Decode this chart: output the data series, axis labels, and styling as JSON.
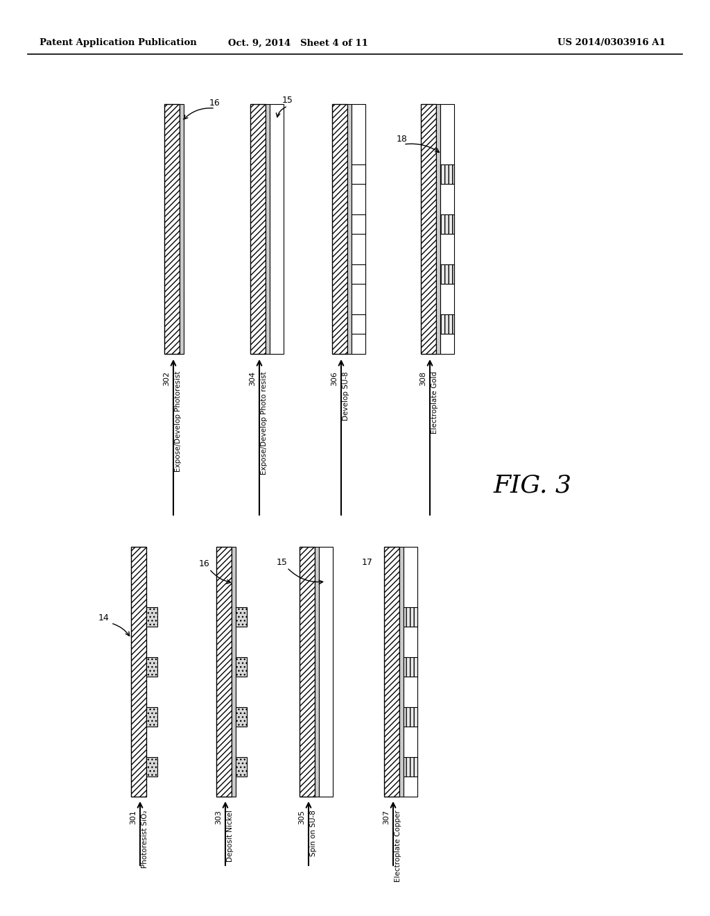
{
  "header_left": "Patent Application Publication",
  "header_mid": "Oct. 9, 2014   Sheet 4 of 11",
  "header_right": "US 2014/0303916 A1",
  "fig_label": "FIG. 3",
  "background": "#ffffff",
  "step_labels_left": [
    {
      "num": "301",
      "text": "Photoresist\nSiO₂"
    },
    {
      "num": "303",
      "text": "Deposit Nickel"
    },
    {
      "num": "305",
      "text": "Spin on SU-8"
    },
    {
      "num": "307",
      "text": "Electroplate\nCopper"
    }
  ],
  "step_labels_right": [
    {
      "num": "302",
      "text": "Expose/Develop\nPhotoresist"
    },
    {
      "num": "304",
      "text": "Expose/Develop\nPhoto resist"
    },
    {
      "num": "306",
      "text": "Develop SU-8"
    },
    {
      "num": "308",
      "text": "Electroplate\nGold"
    }
  ]
}
